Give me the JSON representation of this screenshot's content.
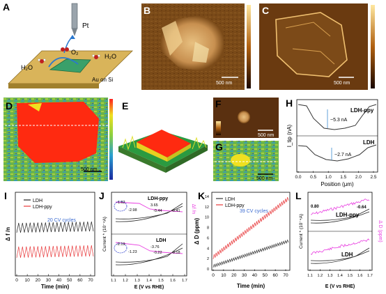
{
  "panels": {
    "A": {
      "letter": "A",
      "tip_label": "Pt",
      "substrate_label": "Au on Si",
      "species": [
        "H₂O",
        "O₂",
        "H₂O"
      ]
    },
    "B": {
      "letter": "B",
      "scale": "500 nm"
    },
    "C": {
      "letter": "C",
      "scale": "500 nm"
    },
    "D": {
      "letter": "D",
      "scale": "500 nm"
    },
    "E": {
      "letter": "E"
    },
    "F": {
      "letter": "F",
      "scale": "500 nm"
    },
    "G": {
      "letter": "G",
      "scale": "500 nm"
    },
    "H": {
      "letter": "H",
      "ylabel": "I_tip (nA)",
      "xlabel": "Position (μm)",
      "series_top": "LDH-ppy",
      "series_bottom": "LDH",
      "annot_top": "~5.3 nA",
      "annot_bottom": "~2.7 nA",
      "xticks": [
        "0.0",
        "0.5",
        "1.0",
        "1.5",
        "2.0",
        "2.5"
      ]
    },
    "I": {
      "letter": "I",
      "ylabel": "Δ f /n",
      "xlabel": "Time (min)",
      "legend": [
        "LDH",
        "LDH-ppy"
      ],
      "note": "20 CV cycles",
      "xticks": [
        "0",
        "10",
        "20",
        "30",
        "40",
        "50",
        "60",
        "70"
      ]
    },
    "J": {
      "letter": "J",
      "ylabel": "Current * (10⁻⁴A)",
      "y2label": "Δf /n",
      "xlabel": "E (V vs RHE)",
      "top_title": "LDH-ppy",
      "bottom_title": "LDH",
      "annots_top": [
        "-1.62",
        "-2.98",
        "3.65",
        "-0.44",
        "-0.41"
      ],
      "annots_bottom": [
        "-2.19",
        "-1.23",
        "-3.76",
        "-0.22",
        "-0.18"
      ],
      "xticks": [
        "1.1",
        "1.2",
        "1.3",
        "1.4",
        "1.5",
        "1.6",
        "1.7"
      ]
    },
    "K": {
      "letter": "K",
      "ylabel": "Δ D (ppm)",
      "xlabel": "Time (min)",
      "legend": [
        "LDH",
        "LDH-ppy"
      ],
      "note": "39 CV cycles",
      "xticks": [
        "0",
        "10",
        "20",
        "30",
        "40",
        "50",
        "60",
        "70"
      ],
      "yticks": [
        "0",
        "2",
        "4",
        "6",
        "8",
        "10",
        "12",
        "14"
      ]
    },
    "L": {
      "letter": "L",
      "ylabel": "Current * (10⁻⁴A)",
      "y2label": "Δ D (ppm)",
      "xlabel": "E (V vs RHE)",
      "top_title": "LDH-ppy",
      "bottom_title": "LDH",
      "annots": [
        "0.80",
        "-0.64"
      ],
      "xticks": [
        "1.1",
        "1.2",
        "1.3",
        "1.4",
        "1.5",
        "1.6",
        "1.7"
      ]
    }
  },
  "colors": {
    "ldh": "#222222",
    "ldhppy": "#e8383a",
    "magenta": "#e83ce0",
    "afm_dark": "#3a1d05",
    "afm_light": "#f0c070"
  }
}
